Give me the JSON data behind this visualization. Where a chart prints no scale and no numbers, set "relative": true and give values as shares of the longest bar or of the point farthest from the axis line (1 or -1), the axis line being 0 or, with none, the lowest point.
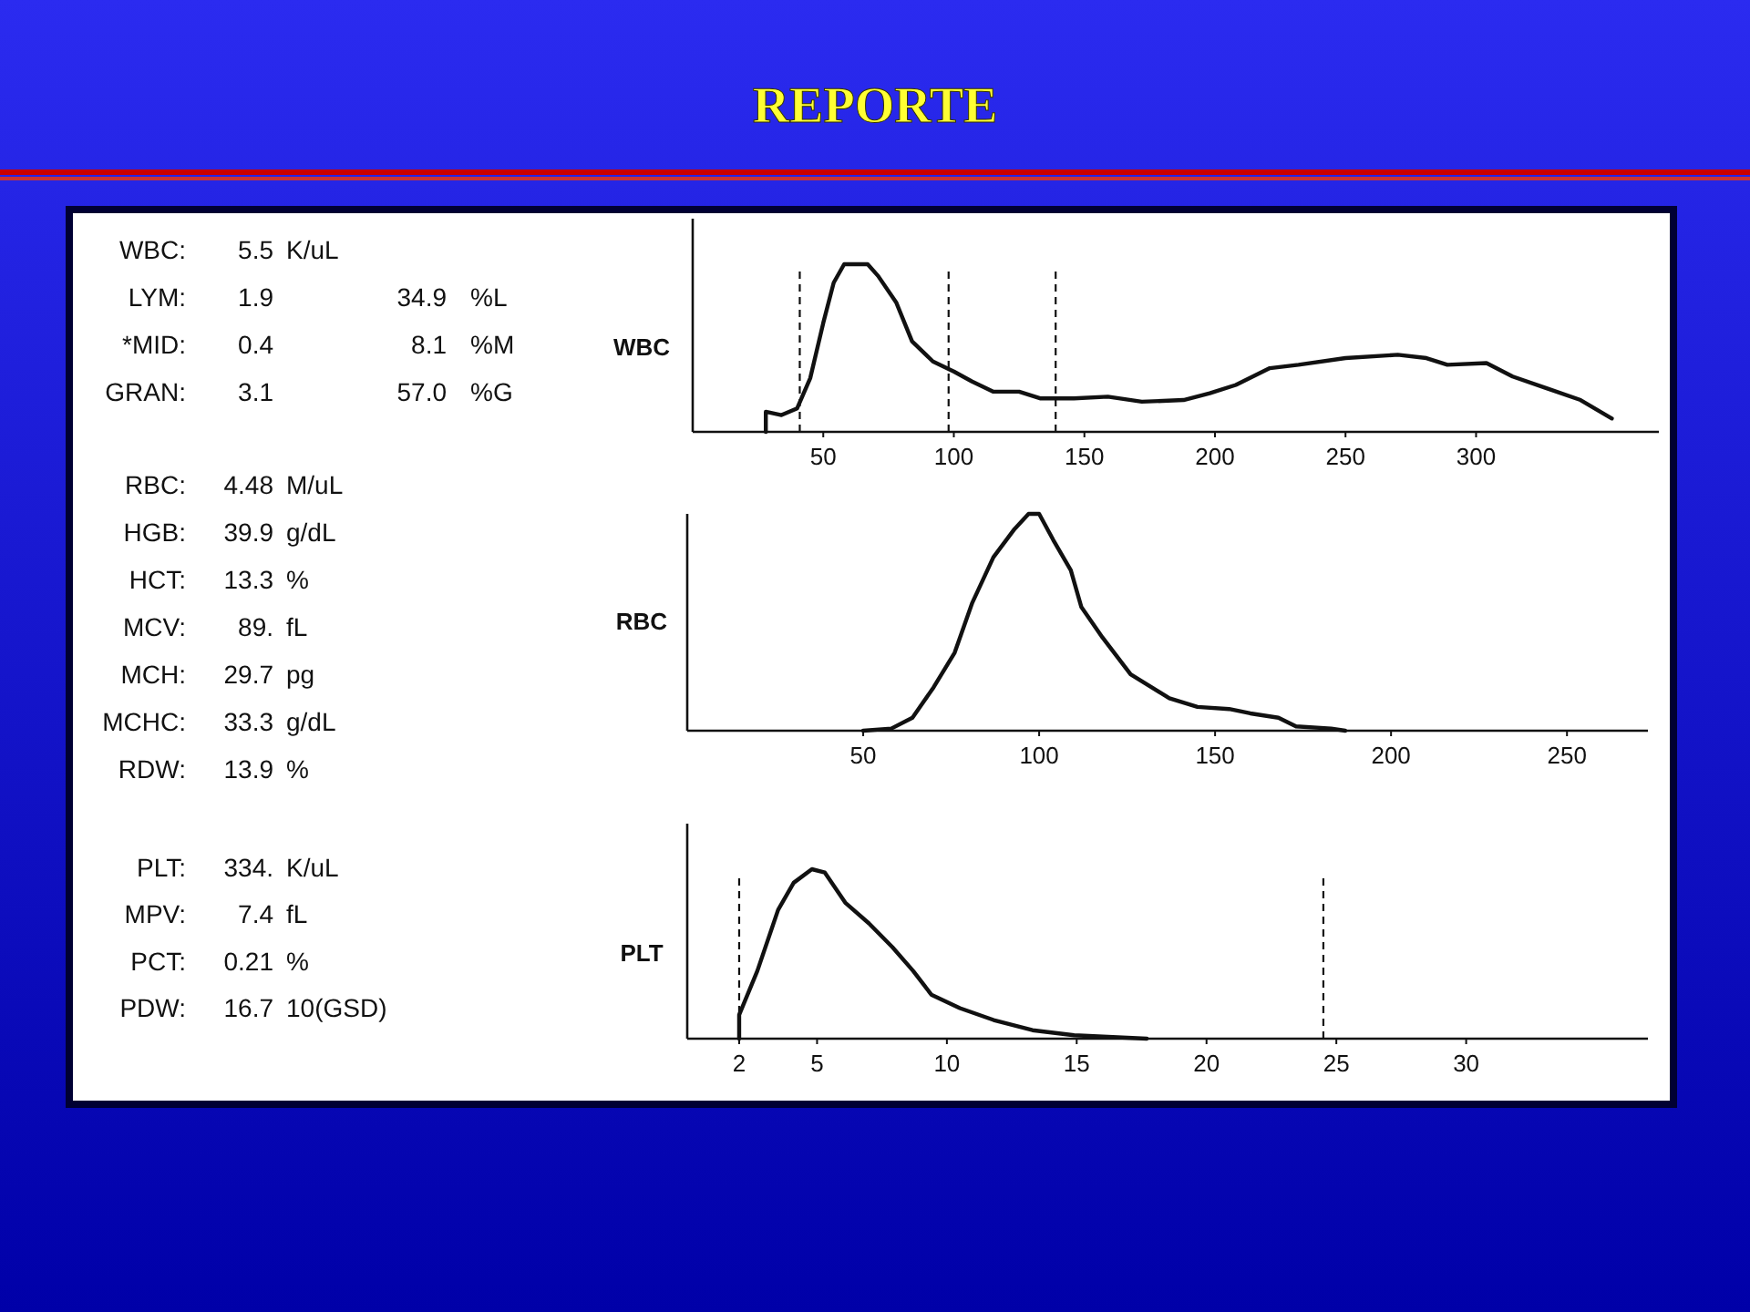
{
  "chart_data": [
    {
      "type": "other",
      "title": "REPORTE",
      "annotations": [
        "WBC: 5.5 K/uL",
        "LYM: 1.9 34.9 %L",
        "*MID: 0.4 8.1 %M",
        "GRAN: 3.1 57.0 %G"
      ]
    },
    {
      "type": "other",
      "annotations": [
        "RBC: 4.48 M/uL",
        "HGB: 39.9 g/dL",
        "HCT: 13.3 %",
        "MCV: 89. fL",
        "MCH: 29.7 pg",
        "MCHC: 33.3 g/dL",
        "RDW: 13.9 %"
      ]
    },
    {
      "type": "other",
      "annotations": [
        "PLT: 334. K/uL",
        "MPV: 7.4 fL",
        "PCT: 0.21 %",
        "PDW: 16.7 10(GSD)"
      ]
    },
    {
      "type": "line",
      "ylabel": "WBC",
      "relative": true,
      "xlim": [
        0,
        370
      ],
      "xticks": [
        50,
        100,
        150,
        200,
        250,
        300
      ],
      "marker": "none",
      "line_style": "solid",
      "ref_lines": [
        {
          "axis": "x",
          "value": 41,
          "line_style": "dashed"
        },
        {
          "axis": "x",
          "value": 98,
          "line_style": "dashed"
        },
        {
          "axis": "x",
          "value": 139,
          "line_style": "dashed"
        }
      ],
      "series": [
        {
          "color": "#111111",
          "x": [
            28,
            28,
            34,
            40,
            45,
            50,
            54,
            58,
            67,
            71,
            78,
            84,
            92,
            100,
            107,
            115,
            125,
            133,
            146,
            159,
            172,
            188,
            198,
            208,
            221,
            232,
            250,
            270,
            281,
            289,
            304,
            314,
            327,
            340,
            352
          ],
          "values": [
            0,
            0.12,
            0.1,
            0.14,
            0.32,
            0.65,
            0.89,
            1,
            1,
            0.93,
            0.77,
            0.54,
            0.42,
            0.36,
            0.3,
            0.24,
            0.24,
            0.2,
            0.2,
            0.21,
            0.18,
            0.19,
            0.23,
            0.28,
            0.38,
            0.4,
            0.44,
            0.46,
            0.44,
            0.4,
            0.41,
            0.33,
            0.26,
            0.19,
            0.08
          ]
        }
      ]
    },
    {
      "type": "line",
      "ylabel": "RBC",
      "relative": true,
      "xlim": [
        0,
        273
      ],
      "xticks": [
        50,
        100,
        150,
        200,
        250
      ],
      "marker": "none",
      "line_style": "solid",
      "series": [
        {
          "color": "#111111",
          "x": [
            50,
            58,
            64,
            70,
            76,
            81,
            87,
            93,
            97,
            100,
            104,
            109,
            112,
            118,
            126,
            137,
            145,
            154,
            160,
            168,
            173,
            183,
            187
          ],
          "values": [
            0,
            0.01,
            0.06,
            0.2,
            0.36,
            0.59,
            0.8,
            0.93,
            1,
            1,
            0.88,
            0.74,
            0.57,
            0.43,
            0.26,
            0.15,
            0.11,
            0.1,
            0.08,
            0.06,
            0.02,
            0.01,
            0
          ]
        }
      ]
    },
    {
      "type": "line",
      "ylabel": "PLT",
      "relative": true,
      "xlim": [
        0,
        37
      ],
      "xticks": [
        2,
        5,
        10,
        15,
        20,
        25,
        30
      ],
      "marker": "none",
      "line_style": "solid",
      "ref_lines": [
        {
          "axis": "x",
          "value": 2,
          "line_style": "dashed"
        },
        {
          "axis": "x",
          "value": 24.5,
          "line_style": "dashed"
        }
      ],
      "series": [
        {
          "color": "#111111",
          "x": [
            2,
            2,
            2.7,
            3.5,
            4.1,
            4.8,
            5.3,
            6.1,
            7,
            7.9,
            8.7,
            9.4,
            10.5,
            11.8,
            13.3,
            14.9,
            17.7
          ],
          "values": [
            0,
            0.14,
            0.4,
            0.76,
            0.92,
            1,
            0.98,
            0.8,
            0.68,
            0.54,
            0.4,
            0.26,
            0.18,
            0.11,
            0.05,
            0.02,
            0
          ]
        }
      ]
    }
  ]
}
